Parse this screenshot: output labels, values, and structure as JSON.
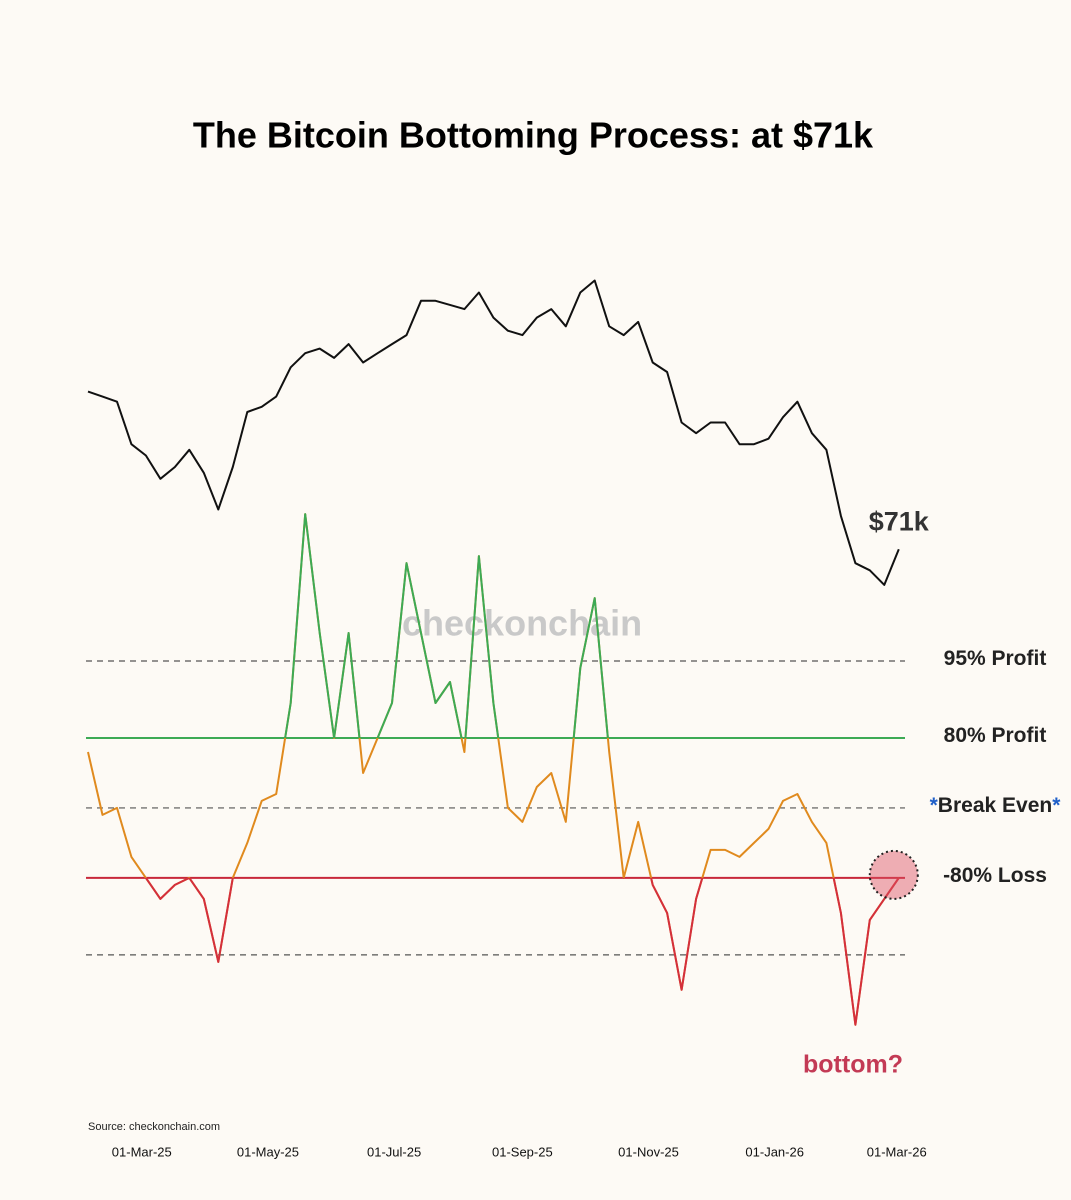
{
  "chart_data": {
    "type": "line",
    "title": "The Bitcoin Bottoming Process: at $71k",
    "source": "Source: checkonchain.com",
    "watermark": "checkonchain",
    "x": [
      "2025-02-03",
      "2025-02-10",
      "2025-02-17",
      "2025-02-24",
      "2025-03-03",
      "2025-03-10",
      "2025-03-17",
      "2025-03-24",
      "2025-03-31",
      "2025-04-07",
      "2025-04-14",
      "2025-04-21",
      "2025-04-28",
      "2025-05-05",
      "2025-05-12",
      "2025-05-19",
      "2025-05-26",
      "2025-06-02",
      "2025-06-09",
      "2025-06-16",
      "2025-06-23",
      "2025-06-30",
      "2025-07-07",
      "2025-07-14",
      "2025-07-21",
      "2025-07-28",
      "2025-08-04",
      "2025-08-11",
      "2025-08-18",
      "2025-08-25",
      "2025-09-01",
      "2025-09-08",
      "2025-09-15",
      "2025-09-22",
      "2025-09-29",
      "2025-10-06",
      "2025-10-13",
      "2025-10-20",
      "2025-10-27",
      "2025-11-03",
      "2025-11-10",
      "2025-11-17",
      "2025-11-24",
      "2025-12-01",
      "2025-12-08",
      "2025-12-15",
      "2025-12-22",
      "2025-12-29",
      "2026-01-05",
      "2026-01-12",
      "2026-01-19",
      "2026-01-26",
      "2026-02-02",
      "2026-02-09",
      "2026-02-16",
      "2026-02-23",
      "2026-03-02"
    ],
    "xlim": [
      "2025-02-03",
      "2026-03-05"
    ],
    "xticks": [
      {
        "value": "2025-03-01",
        "label": "01-Mar-25"
      },
      {
        "value": "2025-05-01",
        "label": "01-May-25"
      },
      {
        "value": "2025-07-01",
        "label": "01-Jul-25"
      },
      {
        "value": "2025-09-01",
        "label": "01-Sep-25"
      },
      {
        "value": "2025-11-01",
        "label": "01-Nov-25"
      },
      {
        "value": "2026-01-01",
        "label": "01-Jan-26"
      },
      {
        "value": "2026-03-01",
        "label": "01-Mar-26"
      }
    ],
    "ylim": [
      25500,
      145000
    ],
    "log_scale": true,
    "y2lim": [
      -3.46,
      8.69
    ],
    "series": [
      {
        "color": "#111111",
        "values": [
          98000,
          97000,
          96000,
          88000,
          86000,
          82000,
          84000,
          87000,
          83000,
          77000,
          84000,
          94000,
          95000,
          97000,
          103000,
          106000,
          107000,
          105000,
          108000,
          104000,
          106000,
          108000,
          110000,
          118000,
          118000,
          117000,
          116000,
          120000,
          114000,
          111000,
          110000,
          114000,
          116000,
          112000,
          120000,
          123000,
          112000,
          110000,
          113000,
          104000,
          102000,
          92000,
          90000,
          92000,
          92000,
          88000,
          88000,
          89000,
          93000,
          96000,
          90000,
          87000,
          76000,
          69000,
          68000,
          66000,
          71000
        ]
      },
      {
        "axis": "y2",
        "color": "#e08a1e",
        "values": [
          0.8,
          -0.1,
          0.0,
          -0.7,
          -1.0,
          -1.3,
          -1.1,
          -1.0,
          -1.3,
          -2.2,
          -1.0,
          -0.5,
          0.1,
          0.2,
          1.5,
          4.2,
          2.5,
          1.0,
          2.5,
          0.5,
          1.0,
          1.5,
          3.5,
          2.5,
          1.5,
          1.8,
          0.8,
          3.6,
          1.5,
          0.0,
          -0.2,
          0.3,
          0.5,
          -0.2,
          2.0,
          3.0,
          0.8,
          -1.0,
          -0.2,
          -1.1,
          -1.5,
          -2.6,
          -1.3,
          -0.6,
          -0.6,
          -0.7,
          -0.5,
          -0.3,
          0.1,
          0.2,
          -0.2,
          -0.5,
          -1.5,
          -3.1,
          -1.6,
          -1.3,
          -1.0
        ]
      }
    ],
    "zones": [
      {
        "min": 1,
        "color": "#3daa55"
      },
      {
        "max": -1,
        "color": "#d42f3c"
      }
    ],
    "reference_lines": [
      {
        "value": 2.1,
        "label": "95% Profit",
        "style": "dashed",
        "color": "#555555"
      },
      {
        "value": 1,
        "label": "80% Profit",
        "style": "solid",
        "color": "#3daa55"
      },
      {
        "value": 0,
        "label": "Break Even",
        "marker": "*",
        "marker_color": "#1f5fc8",
        "style": "dashed",
        "color": "#555555"
      },
      {
        "value": -1,
        "label": "-80% Loss",
        "style": "solid",
        "color": "#c8283a"
      },
      {
        "value": -2.1,
        "style": "dashed",
        "color": "#555555"
      }
    ],
    "annotations": [
      {
        "text": "$71k",
        "color": "#333333"
      },
      {
        "text": "bottom?",
        "color": "#c33a55"
      }
    ]
  }
}
